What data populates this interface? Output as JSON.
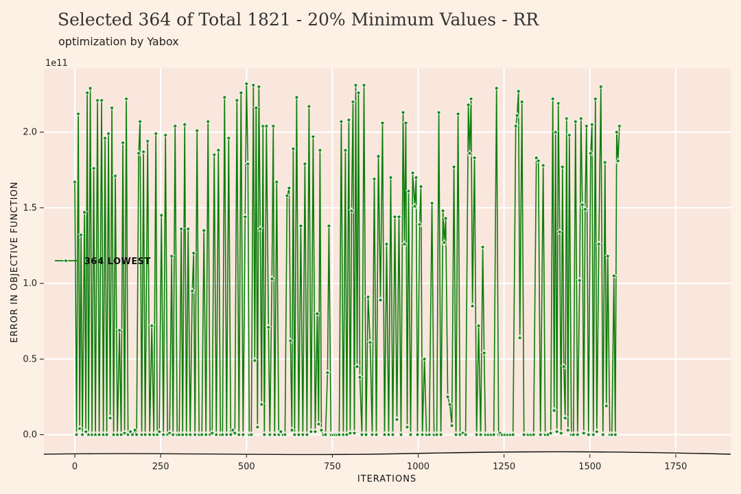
{
  "chart_data": {
    "type": "line",
    "title": "Selected 364 of Total 1821  - 20% Minimum Values - RR",
    "subtitle": "optimization by Yabox",
    "xlabel": "ITERATIONS",
    "ylabel": "ERROR IN OBJECTIVE FUNCTION",
    "y_offset_label": "1e11",
    "xlim": [
      -90,
      1910
    ],
    "ylim": [
      -0.12,
      2.42
    ],
    "x_ticks": [
      0,
      250,
      500,
      750,
      1000,
      1250,
      1500,
      1750
    ],
    "x_tick_labels": [
      "0",
      "250",
      "500",
      "750",
      "1000",
      "1250",
      "1500",
      "1750"
    ],
    "y_ticks": [
      0.0,
      0.5,
      1.0,
      1.5,
      2.0
    ],
    "y_tick_labels": [
      "0.0",
      "0.5",
      "1.0",
      "1.5",
      "2.0"
    ],
    "grid": true,
    "legend_position": "center-left",
    "series": [
      {
        "name": "364 LOWEST",
        "color": "#0a7d0a",
        "marker": "star",
        "points": [
          [
            0,
            1.67
          ],
          [
            5,
            0
          ],
          [
            10,
            2.12
          ],
          [
            14,
            0.04
          ],
          [
            18,
            1.32
          ],
          [
            22,
            0
          ],
          [
            28,
            1.47
          ],
          [
            32,
            0.02
          ],
          [
            36,
            2.26
          ],
          [
            40,
            0
          ],
          [
            45,
            2.29
          ],
          [
            50,
            0
          ],
          [
            55,
            1.76
          ],
          [
            60,
            0
          ],
          [
            66,
            2.21
          ],
          [
            71,
            0
          ],
          [
            78,
            2.21
          ],
          [
            83,
            0
          ],
          [
            88,
            1.96
          ],
          [
            93,
            0
          ],
          [
            98,
            1.99
          ],
          [
            103,
            0.11
          ],
          [
            108,
            2.16
          ],
          [
            113,
            0
          ],
          [
            118,
            1.71
          ],
          [
            124,
            0
          ],
          [
            130,
            0.69
          ],
          [
            135,
            0
          ],
          [
            140,
            1.93
          ],
          [
            145,
            0.01
          ],
          [
            150,
            2.22
          ],
          [
            155,
            0
          ],
          [
            162,
            0.02
          ],
          [
            168,
            0
          ],
          [
            175,
            0.03
          ],
          [
            180,
            0
          ],
          [
            186,
            1.86
          ],
          [
            190,
            2.07
          ],
          [
            195,
            0
          ],
          [
            200,
            1.87
          ],
          [
            205,
            0
          ],
          [
            212,
            1.94
          ],
          [
            218,
            0
          ],
          [
            224,
            0.72
          ],
          [
            230,
            0
          ],
          [
            236,
            1.99
          ],
          [
            240,
            0
          ],
          [
            246,
            0.02
          ],
          [
            252,
            1.45
          ],
          [
            258,
            0
          ],
          [
            264,
            1.98
          ],
          [
            270,
            0
          ],
          [
            276,
            0.01
          ],
          [
            282,
            1.18
          ],
          [
            286,
            0
          ],
          [
            292,
            2.04
          ],
          [
            298,
            0
          ],
          [
            304,
            0
          ],
          [
            310,
            1.36
          ],
          [
            314,
            0
          ],
          [
            320,
            2.05
          ],
          [
            325,
            0
          ],
          [
            330,
            1.36
          ],
          [
            336,
            0
          ],
          [
            342,
            0.95
          ],
          [
            346,
            1.2
          ],
          [
            350,
            0
          ],
          [
            356,
            2.01
          ],
          [
            362,
            0
          ],
          [
            370,
            0
          ],
          [
            376,
            1.35
          ],
          [
            382,
            0
          ],
          [
            388,
            2.07
          ],
          [
            394,
            0
          ],
          [
            400,
            0.01
          ],
          [
            406,
            1.85
          ],
          [
            412,
            0
          ],
          [
            418,
            1.88
          ],
          [
            424,
            0
          ],
          [
            430,
            0
          ],
          [
            436,
            2.23
          ],
          [
            442,
            0
          ],
          [
            448,
            1.96
          ],
          [
            454,
            0
          ],
          [
            460,
            0.03
          ],
          [
            466,
            0.01
          ],
          [
            472,
            2.21
          ],
          [
            478,
            0
          ],
          [
            484,
            2.26
          ],
          [
            490,
            0
          ],
          [
            496,
            1.44
          ],
          [
            500,
            2.32
          ],
          [
            504,
            1.79
          ],
          [
            508,
            0
          ],
          [
            514,
            0
          ],
          [
            520,
            2.31
          ],
          [
            524,
            0.49
          ],
          [
            528,
            2.16
          ],
          [
            532,
            0.05
          ],
          [
            536,
            2.3
          ],
          [
            540,
            1.36
          ],
          [
            544,
            0.2
          ],
          [
            548,
            2.04
          ],
          [
            552,
            0
          ],
          [
            558,
            2.04
          ],
          [
            564,
            0.71
          ],
          [
            568,
            0
          ],
          [
            574,
            1.03
          ],
          [
            578,
            2.04
          ],
          [
            582,
            0
          ],
          [
            588,
            1.67
          ],
          [
            594,
            0
          ],
          [
            600,
            0.02
          ],
          [
            606,
            0
          ],
          [
            612,
            0
          ],
          [
            618,
            1.58
          ],
          [
            624,
            1.63
          ],
          [
            628,
            0.62
          ],
          [
            632,
            0.03
          ],
          [
            636,
            1.89
          ],
          [
            640,
            0
          ],
          [
            646,
            2.23
          ],
          [
            652,
            0
          ],
          [
            658,
            1.38
          ],
          [
            664,
            0
          ],
          [
            670,
            1.79
          ],
          [
            676,
            0
          ],
          [
            682,
            2.17
          ],
          [
            688,
            0.02
          ],
          [
            694,
            1.97
          ],
          [
            700,
            0.02
          ],
          [
            706,
            0.8
          ],
          [
            710,
            0.07
          ],
          [
            714,
            1.88
          ],
          [
            718,
            0.03
          ],
          [
            724,
            0
          ],
          [
            730,
            0
          ],
          [
            736,
            0.41
          ],
          [
            740,
            1.38
          ],
          [
            746,
            0
          ],
          [
            752,
            0
          ],
          [
            758,
            0
          ],
          [
            764,
            0
          ],
          [
            770,
            0
          ],
          [
            776,
            2.07
          ],
          [
            782,
            0
          ],
          [
            788,
            1.88
          ],
          [
            792,
            0
          ],
          [
            798,
            2.08
          ],
          [
            802,
            0.01
          ],
          [
            806,
            1.48
          ],
          [
            810,
            2.2
          ],
          [
            814,
            0.01
          ],
          [
            818,
            2.31
          ],
          [
            822,
            0.45
          ],
          [
            826,
            2.26
          ],
          [
            830,
            0.38
          ],
          [
            836,
            0
          ],
          [
            842,
            2.31
          ],
          [
            848,
            0
          ],
          [
            854,
            0.91
          ],
          [
            860,
            0.61
          ],
          [
            866,
            0
          ],
          [
            872,
            1.69
          ],
          [
            878,
            0
          ],
          [
            884,
            1.84
          ],
          [
            890,
            0.89
          ],
          [
            896,
            2.06
          ],
          [
            902,
            0
          ],
          [
            908,
            1.26
          ],
          [
            914,
            0
          ],
          [
            920,
            1.7
          ],
          [
            926,
            0
          ],
          [
            932,
            1.44
          ],
          [
            938,
            0.1
          ],
          [
            944,
            1.44
          ],
          [
            950,
            0
          ],
          [
            956,
            2.13
          ],
          [
            960,
            1.26
          ],
          [
            964,
            2.06
          ],
          [
            968,
            0.05
          ],
          [
            972,
            1.61
          ],
          [
            978,
            0
          ],
          [
            984,
            1.73
          ],
          [
            990,
            1.51
          ],
          [
            994,
            1.7
          ],
          [
            998,
            0
          ],
          [
            1004,
            1.39
          ],
          [
            1008,
            1.64
          ],
          [
            1012,
            0
          ],
          [
            1018,
            0.5
          ],
          [
            1024,
            0
          ],
          [
            1032,
            0
          ],
          [
            1040,
            1.53
          ],
          [
            1046,
            0
          ],
          [
            1054,
            0
          ],
          [
            1060,
            2.13
          ],
          [
            1066,
            0
          ],
          [
            1072,
            1.48
          ],
          [
            1076,
            1.27
          ],
          [
            1080,
            1.43
          ],
          [
            1086,
            0.25
          ],
          [
            1092,
            0.2
          ],
          [
            1098,
            0.06
          ],
          [
            1104,
            1.77
          ],
          [
            1110,
            0
          ],
          [
            1116,
            2.12
          ],
          [
            1122,
            0
          ],
          [
            1130,
            0.01
          ],
          [
            1138,
            0
          ],
          [
            1146,
            2.18
          ],
          [
            1150,
            1.86
          ],
          [
            1154,
            2.22
          ],
          [
            1158,
            0.85
          ],
          [
            1164,
            1.83
          ],
          [
            1170,
            0
          ],
          [
            1176,
            0.72
          ],
          [
            1182,
            0
          ],
          [
            1188,
            1.24
          ],
          [
            1192,
            0.54
          ],
          [
            1196,
            0
          ],
          [
            1204,
            0
          ],
          [
            1212,
            0
          ],
          [
            1220,
            0
          ],
          [
            1228,
            2.29
          ],
          [
            1234,
            0
          ],
          [
            1238,
            0.01
          ],
          [
            1244,
            0
          ],
          [
            1252,
            0
          ],
          [
            1260,
            0
          ],
          [
            1268,
            0
          ],
          [
            1276,
            0
          ],
          [
            1284,
            2.04
          ],
          [
            1288,
            2.11
          ],
          [
            1292,
            2.27
          ],
          [
            1296,
            0.64
          ],
          [
            1302,
            2.2
          ],
          [
            1308,
            0
          ],
          [
            1320,
            0
          ],
          [
            1328,
            0
          ],
          [
            1336,
            0
          ],
          [
            1344,
            1.83
          ],
          [
            1350,
            1.81
          ],
          [
            1356,
            0
          ],
          [
            1364,
            1.78
          ],
          [
            1370,
            0
          ],
          [
            1378,
            0
          ],
          [
            1386,
            0.01
          ],
          [
            1392,
            2.22
          ],
          [
            1396,
            0.16
          ],
          [
            1400,
            2.0
          ],
          [
            1404,
            0.02
          ],
          [
            1408,
            2.19
          ],
          [
            1412,
            1.34
          ],
          [
            1416,
            0.01
          ],
          [
            1420,
            1.77
          ],
          [
            1424,
            0.45
          ],
          [
            1428,
            0.11
          ],
          [
            1432,
            2.09
          ],
          [
            1436,
            0.03
          ],
          [
            1440,
            1.98
          ],
          [
            1446,
            0
          ],
          [
            1452,
            0
          ],
          [
            1458,
            2.07
          ],
          [
            1464,
            0
          ],
          [
            1470,
            1.02
          ],
          [
            1474,
            2.09
          ],
          [
            1478,
            1.52
          ],
          [
            1482,
            0.01
          ],
          [
            1486,
            1.49
          ],
          [
            1490,
            2.04
          ],
          [
            1496,
            0
          ],
          [
            1502,
            1.86
          ],
          [
            1506,
            2.05
          ],
          [
            1510,
            0
          ],
          [
            1516,
            2.22
          ],
          [
            1520,
            0.02
          ],
          [
            1526,
            1.26
          ],
          [
            1532,
            2.3
          ],
          [
            1538,
            0
          ],
          [
            1544,
            1.8
          ],
          [
            1548,
            0.19
          ],
          [
            1552,
            1.18
          ],
          [
            1558,
            0
          ],
          [
            1564,
            0
          ],
          [
            1570,
            1.05
          ],
          [
            1574,
            0
          ],
          [
            1578,
            2.0
          ],
          [
            1582,
            1.81
          ],
          [
            1586,
            2.04
          ]
        ]
      }
    ]
  }
}
